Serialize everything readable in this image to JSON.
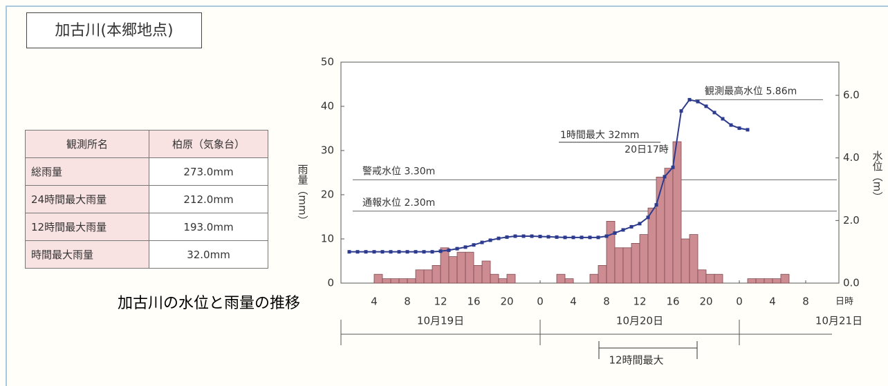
{
  "title": "加古川(本郷地点)",
  "caption": "加古川の水位と雨量の推移",
  "table": {
    "header": [
      "観測所名",
      "柏原（気象台）"
    ],
    "rows": [
      [
        "総雨量",
        "273.0mm"
      ],
      [
        "24時間最大雨量",
        "212.0mm"
      ],
      [
        "12時間最大雨量",
        "193.0mm"
      ],
      [
        "時間最大雨量",
        "32.0mm"
      ]
    ]
  },
  "chart_data": {
    "type": "combo",
    "ylabel": "雨量（mm）",
    "y2label": "水位（m）",
    "xlabel": "日時",
    "xlim": [
      0,
      60
    ],
    "xticks": [
      4,
      8,
      12,
      16,
      20,
      {
        "value": 24,
        "label": "0"
      },
      {
        "value": 28,
        "label": "4"
      },
      {
        "value": 32,
        "label": "8"
      },
      {
        "value": 36,
        "label": "12"
      },
      {
        "value": 40,
        "label": "16"
      },
      {
        "value": 44,
        "label": "20"
      },
      {
        "value": 48,
        "label": "0"
      },
      {
        "value": 52,
        "label": "4"
      },
      {
        "value": 56,
        "label": "8"
      }
    ],
    "days": [
      "10月19日",
      "10月20日",
      "10月21日"
    ],
    "ylim": [
      0,
      50
    ],
    "yticks": [
      0,
      10,
      20,
      30,
      40,
      50
    ],
    "y2lim": [
      0,
      7.06
    ],
    "y2ticks": [
      {
        "value": 0,
        "label": "0.0"
      },
      {
        "value": 2,
        "label": "2.0"
      },
      {
        "value": 4,
        "label": "4.0"
      },
      {
        "value": 6,
        "label": "6.0"
      }
    ],
    "series": [
      {
        "type": "bar",
        "color": "#cc8c92",
        "x": [
          5,
          6,
          7,
          8,
          9,
          10,
          11,
          12,
          13,
          14,
          15,
          16,
          17,
          18,
          19,
          20,
          21,
          27,
          28,
          31,
          32,
          33,
          34,
          35,
          36,
          37,
          38,
          39,
          40,
          41,
          42,
          43,
          44,
          45,
          46,
          50,
          51,
          52,
          53,
          54
        ],
        "values": [
          2,
          1,
          1,
          1,
          1,
          3,
          3,
          4,
          8,
          6,
          7,
          7,
          4,
          5,
          2,
          1,
          2,
          2,
          1,
          2,
          4,
          14,
          8,
          8,
          9,
          11,
          17,
          24,
          26,
          32,
          10,
          11,
          3,
          2,
          2,
          1,
          1,
          1,
          1,
          2
        ]
      },
      {
        "type": "line",
        "axis": "y2",
        "color": "#2c3b8e",
        "x": [
          1,
          2,
          3,
          4,
          5,
          6,
          7,
          8,
          9,
          10,
          11,
          12,
          13,
          14,
          15,
          16,
          17,
          18,
          19,
          20,
          21,
          22,
          23,
          24,
          25,
          26,
          27,
          28,
          29,
          30,
          31,
          32,
          33,
          34,
          35,
          36,
          37,
          38,
          39,
          40,
          41,
          42,
          43,
          44,
          45,
          46,
          47,
          48,
          49
        ],
        "values": [
          1.0,
          1.0,
          1.0,
          1.0,
          1.0,
          1.0,
          1.0,
          1.0,
          1.0,
          1.0,
          1.0,
          1.02,
          1.05,
          1.1,
          1.15,
          1.22,
          1.3,
          1.37,
          1.43,
          1.47,
          1.5,
          1.5,
          1.5,
          1.49,
          1.48,
          1.47,
          1.46,
          1.46,
          1.46,
          1.46,
          1.46,
          1.5,
          1.6,
          1.7,
          1.8,
          1.9,
          2.1,
          2.5,
          3.4,
          3.7,
          5.5,
          5.86,
          5.8,
          5.65,
          5.45,
          5.25,
          5.05,
          4.95,
          4.9
        ]
      }
    ],
    "annotations": [
      {
        "text": "観測最高水位 5.86m",
        "value": 5.86
      },
      {
        "text": "警戒水位 3.30m",
        "value": 3.3
      },
      {
        "text": "通報水位 2.30m",
        "value": 2.3
      }
    ],
    "max_rain": [
      "1時間最大 32mm",
      "20日17時"
    ],
    "period": "12時間最大"
  }
}
